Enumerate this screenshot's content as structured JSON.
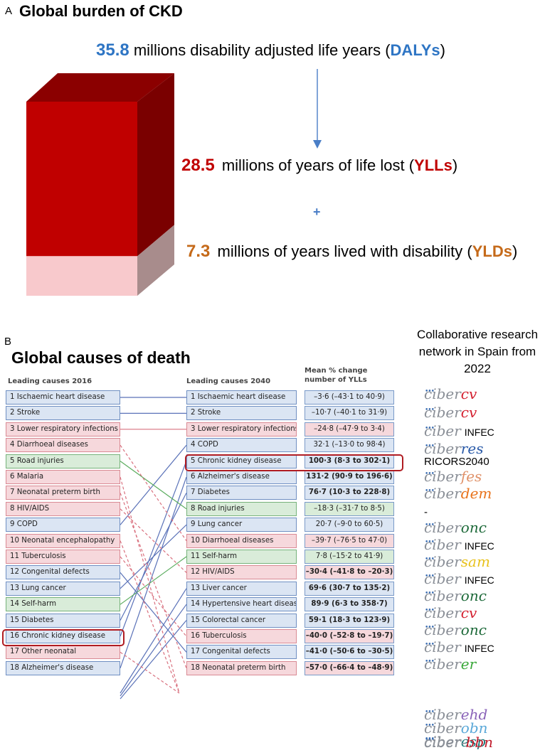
{
  "panel_a": {
    "letter": "A",
    "title": "Global burden of CKD",
    "dalys": {
      "value": "35.8",
      "text": "millions disability adjusted life years (",
      "acronym": "DALYs",
      "close": ")"
    },
    "ylls": {
      "value": "28.5",
      "text": "millions of years of life lost (",
      "acronym": "YLLs",
      "close": ")"
    },
    "plus": "+",
    "ylds": {
      "value": "7.3",
      "text": "millions of years lived with disability (",
      "acronym": "YLDs",
      "close": ")"
    },
    "stack": {
      "total": 35.8,
      "ylls": 28.5,
      "ylds": 7.3
    },
    "colors": {
      "blue": "#2e75c4",
      "red": "#c00000",
      "orange": "#c56a1a",
      "ylls_face": "#c00000",
      "ylds_face": "#f8c9cc"
    }
  },
  "panel_b": {
    "letter": "B",
    "title": "Global causes of death",
    "header_2016": "Leading causes 2016",
    "header_2040": "Leading causes 2040",
    "header_change_1": "Mean % change",
    "header_change_2": "number of YLLs",
    "causes_2016": [
      {
        "label": "1 Ischaemic heart disease",
        "kind": "blue"
      },
      {
        "label": "2 Stroke",
        "kind": "blue"
      },
      {
        "label": "3 Lower respiratory infections",
        "kind": "red"
      },
      {
        "label": "4 Diarrhoeal diseases",
        "kind": "red"
      },
      {
        "label": "5 Road injuries",
        "kind": "green"
      },
      {
        "label": "6 Malaria",
        "kind": "red"
      },
      {
        "label": "7 Neonatal preterm birth",
        "kind": "red"
      },
      {
        "label": "8 HIV/AIDS",
        "kind": "red"
      },
      {
        "label": "9 COPD",
        "kind": "blue"
      },
      {
        "label": "10 Neonatal encephalopathy",
        "kind": "red"
      },
      {
        "label": "11 Tuberculosis",
        "kind": "red"
      },
      {
        "label": "12 Congenital defects",
        "kind": "blue"
      },
      {
        "label": "13 Lung cancer",
        "kind": "blue"
      },
      {
        "label": "14 Self-harm",
        "kind": "green"
      },
      {
        "label": "15 Diabetes",
        "kind": "blue"
      },
      {
        "label": "16 Chronic kidney disease",
        "kind": "blue"
      },
      {
        "label": "17 Other neonatal",
        "kind": "red"
      },
      {
        "label": "18 Alzheimer's disease",
        "kind": "blue"
      }
    ],
    "causes_2040": [
      {
        "label": "1 Ischaemic heart disease",
        "kind": "blue",
        "change": "–3·6 (–43·1 to 40·9)",
        "bold": false,
        "from": 1
      },
      {
        "label": "2 Stroke",
        "kind": "blue",
        "change": "–10·7 (–40·1 to 31·9)",
        "bold": false,
        "from": 2
      },
      {
        "label": "3 Lower respiratory infections",
        "kind": "red",
        "change": "–24·8 (–47·9 to 3·4)",
        "bold": false,
        "from": 3
      },
      {
        "label": "4 COPD",
        "kind": "blue",
        "change": "32·1 (–13·0 to 98·4)",
        "bold": false,
        "from": 9
      },
      {
        "label": "5 Chronic kidney disease",
        "kind": "blue",
        "change": "100·3 (8·3 to 302·1)",
        "bold": true,
        "from": 16
      },
      {
        "label": "6 Alzheimer's disease",
        "kind": "blue",
        "change": "131·2 (90·9 to 196·6)",
        "bold": true,
        "from": 18
      },
      {
        "label": "7 Diabetes",
        "kind": "blue",
        "change": "76·7 (10·3 to 228·8)",
        "bold": true,
        "from": 15
      },
      {
        "label": "8 Road injuries",
        "kind": "green",
        "change": "–18·3 (–31·7 to 8·5)",
        "bold": false,
        "from": 5
      },
      {
        "label": "9 Lung cancer",
        "kind": "blue",
        "change": "20·7 (–9·0 to 60·5)",
        "bold": false,
        "from": 13
      },
      {
        "label": "10 Diarrhoeal diseases",
        "kind": "red",
        "change": "–39·7 (–76·5 to 47·0)",
        "bold": false,
        "from": 4
      },
      {
        "label": "11 Self-harm",
        "kind": "green",
        "change": "7·8 (–15·2 to 41·9)",
        "bold": false,
        "from": 14
      },
      {
        "label": "12 HIV/AIDS",
        "kind": "red",
        "change": "–30·4 (–41·8 to –20·3)",
        "bold": true,
        "from": 8
      },
      {
        "label": "13 Liver cancer",
        "kind": "blue",
        "change": "69·6 (30·7 to 135·2)",
        "bold": true,
        "from": 21
      },
      {
        "label": "14 Hypertensive heart disease",
        "kind": "blue",
        "change": "89·9 (6·3 to 358·7)",
        "bold": true,
        "from": 22
      },
      {
        "label": "15 Colorectal cancer",
        "kind": "blue",
        "change": "59·1 (18·3 to 123·9)",
        "bold": true,
        "from": 23
      },
      {
        "label": "16 Tuberculosis",
        "kind": "red",
        "change": "–40·0 (–52·8 to –19·7)",
        "bold": true,
        "from": 11
      },
      {
        "label": "17 Congenital defects",
        "kind": "blue",
        "change": "–41·0 (–50·6 to –30·5)",
        "bold": true,
        "from": 12
      },
      {
        "label": "18 Neonatal preterm birth",
        "kind": "red",
        "change": "–57·0 (–66·4 to –48·9)",
        "bold": true,
        "from": 7
      }
    ],
    "dashed_dropouts": [
      6,
      10,
      17
    ]
  },
  "network": {
    "heading": "Collaborative research network in Spain from 2022",
    "base": "ciber",
    "logos_row": [
      {
        "type": "logo",
        "base": "ciber",
        "suffix": "cv",
        "color": "#d42030"
      },
      {
        "type": "logo",
        "base": "ciber",
        "suffix": "cv",
        "color": "#d42030"
      },
      {
        "type": "logo",
        "base": "ciber",
        "suffix": "",
        "color": "#000000",
        "extra": "INFEC"
      },
      {
        "type": "logo",
        "base": "ciber",
        "suffix": "res",
        "color": "#2a5aa8"
      },
      {
        "type": "text",
        "text": "RICORS2040"
      },
      {
        "type": "logo",
        "base": "ciber",
        "suffix": "fes",
        "color": "#e0926a"
      },
      {
        "type": "logo",
        "base": "ciber",
        "suffix": "dem",
        "color": "#e8731c"
      },
      {
        "type": "text",
        "text": "-"
      },
      {
        "type": "logo",
        "base": "ciber",
        "suffix": "onc",
        "color": "#1e6a3a"
      },
      {
        "type": "logo",
        "base": "ciber",
        "suffix": "",
        "color": "#000000",
        "extra": "INFEC"
      },
      {
        "type": "logo",
        "base": "ciber",
        "suffix": "sam",
        "color": "#e8c21c"
      },
      {
        "type": "logo",
        "base": "ciber",
        "suffix": "",
        "color": "#000000",
        "extra": "INFEC"
      },
      {
        "type": "logo",
        "base": "ciber",
        "suffix": "onc",
        "color": "#1e6a3a"
      },
      {
        "type": "logo",
        "base": "ciber",
        "suffix": "cv",
        "color": "#d42030"
      },
      {
        "type": "logo",
        "base": "ciber",
        "suffix": "onc",
        "color": "#1e6a3a"
      },
      {
        "type": "logo",
        "base": "ciber",
        "suffix": "",
        "color": "#000000",
        "extra": "INFEC"
      },
      {
        "type": "logo",
        "base": "ciber",
        "suffix": "er",
        "color": "#3aa83a"
      }
    ],
    "logos_bottom": [
      {
        "base": "ciber",
        "suffix": "ehd",
        "color": "#8a63b8"
      },
      {
        "base": "ciber",
        "suffix": "obn",
        "color": "#5aa8d8"
      },
      {
        "base": "ciber",
        "suffix": "esp",
        "color": "#1e7a7a"
      },
      {
        "base": "ciber-",
        "suffix": "bbn",
        "color": "#c01a2a"
      }
    ]
  }
}
